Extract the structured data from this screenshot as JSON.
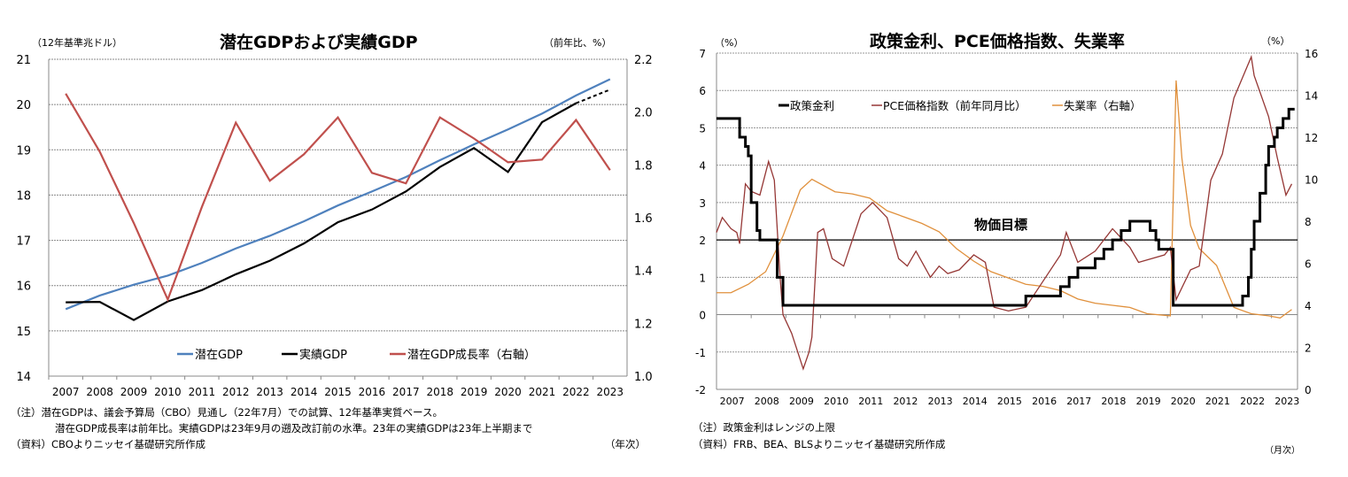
{
  "chart_data": [
    {
      "type": "line",
      "title": "潜在GDPおよび実績GDP",
      "ylabel": "（12年基準兆ドル）",
      "y2label": "（前年比、%）",
      "xlabel": "（年次）",
      "categories": [
        "2007",
        "2008",
        "2009",
        "2010",
        "2011",
        "2012",
        "2013",
        "2014",
        "2015",
        "2016",
        "2017",
        "2018",
        "2019",
        "2020",
        "2021",
        "2022",
        "2023"
      ],
      "ylim": [
        14,
        21
      ],
      "yticks": [
        14,
        15,
        16,
        17,
        18,
        19,
        20,
        21
      ],
      "y2lim": [
        1.0,
        2.2
      ],
      "y2ticks": [
        "1.0",
        "1.2",
        "1.4",
        "1.6",
        "1.8",
        "2.0",
        "2.2"
      ],
      "grid": true,
      "legend_placement": "bottom",
      "series": [
        {
          "name": "潜在GDP",
          "axis": "left",
          "color": "#4F81BD",
          "values": [
            15.48,
            15.78,
            16.02,
            16.22,
            16.5,
            16.82,
            17.1,
            17.42,
            17.77,
            18.08,
            18.4,
            18.77,
            19.12,
            19.45,
            19.8,
            20.2,
            20.56
          ]
        },
        {
          "name": "実績GDP",
          "axis": "left",
          "color": "#000000",
          "dashed_last_segment": true,
          "values": [
            15.63,
            15.64,
            15.24,
            15.65,
            15.9,
            16.25,
            16.55,
            16.93,
            17.4,
            17.68,
            18.08,
            18.62,
            19.04,
            18.51,
            19.61,
            20.03,
            20.33
          ]
        },
        {
          "name": "潜在GDP成長率（右軸）",
          "axis": "right",
          "color": "#C0504D",
          "values": [
            2.07,
            1.85,
            1.58,
            1.29,
            1.64,
            1.96,
            1.74,
            1.84,
            1.98,
            1.77,
            1.73,
            1.98,
            1.9,
            1.81,
            1.82,
            1.97,
            1.78
          ]
        }
      ],
      "notes": [
        "（注）潜在GDPは、議会予算局（CBO）見通し（22年7月）での試算、12年基準実質ベース。",
        "潜在GDP成長率は前年比。実績GDPは23年9月の遡及改訂前の水準。23年の実績GDPは23年上半期まで",
        "（資料）CBOよりニッセイ基礎研究所作成"
      ]
    },
    {
      "type": "line",
      "title": "政策金利、PCE価格指数、失業率",
      "ylabel": "（%）",
      "y2label": "（%）",
      "xlabel": "（月次）",
      "ylim": [
        -2,
        7
      ],
      "yticks": [
        -2,
        -1,
        0,
        1,
        2,
        3,
        4,
        5,
        6,
        7
      ],
      "y2lim": [
        0,
        16
      ],
      "y2ticks": [
        0,
        2,
        4,
        6,
        8,
        10,
        12,
        14,
        16
      ],
      "xticks": [
        "2007",
        "2008",
        "2009",
        "2010",
        "2011",
        "2012",
        "2013",
        "2014",
        "2015",
        "2016",
        "2017",
        "2018",
        "2019",
        "2020",
        "2021",
        "2022",
        "2023"
      ],
      "grid": true,
      "legend_placement": "top",
      "reference_line": {
        "value": 2,
        "label": "物価目標"
      },
      "series": [
        {
          "name": "政策金利",
          "axis": "left",
          "color": "#000000",
          "step": true,
          "points": [
            [
              "2007-01",
              5.25
            ],
            [
              "2007-09",
              4.75
            ],
            [
              "2007-11",
              4.5
            ],
            [
              "2007-12",
              4.25
            ],
            [
              "2008-01",
              3.0
            ],
            [
              "2008-03",
              2.25
            ],
            [
              "2008-04",
              2.0
            ],
            [
              "2008-10",
              1.0
            ],
            [
              "2008-12",
              0.25
            ],
            [
              "2015-12",
              0.5
            ],
            [
              "2016-12",
              0.75
            ],
            [
              "2017-03",
              1.0
            ],
            [
              "2017-06",
              1.25
            ],
            [
              "2017-12",
              1.5
            ],
            [
              "2018-03",
              1.75
            ],
            [
              "2018-06",
              2.0
            ],
            [
              "2018-09",
              2.25
            ],
            [
              "2018-12",
              2.5
            ],
            [
              "2019-07",
              2.25
            ],
            [
              "2019-09",
              2.0
            ],
            [
              "2019-10",
              1.75
            ],
            [
              "2020-03",
              0.25
            ],
            [
              "2022-03",
              0.5
            ],
            [
              "2022-05",
              1.0
            ],
            [
              "2022-06",
              1.75
            ],
            [
              "2022-07",
              2.5
            ],
            [
              "2022-09",
              3.25
            ],
            [
              "2022-11",
              4.0
            ],
            [
              "2022-12",
              4.5
            ],
            [
              "2023-02",
              4.75
            ],
            [
              "2023-03",
              5.0
            ],
            [
              "2023-05",
              5.25
            ],
            [
              "2023-07",
              5.5
            ],
            [
              "2023-09",
              5.5
            ]
          ]
        },
        {
          "name": "PCE価格指数（前年同月比）",
          "axis": "left",
          "color": "#953735",
          "points": [
            [
              "2007-01",
              2.2
            ],
            [
              "2007-03",
              2.6
            ],
            [
              "2007-06",
              2.3
            ],
            [
              "2007-08",
              2.2
            ],
            [
              "2007-09",
              1.9
            ],
            [
              "2007-11",
              3.5
            ],
            [
              "2008-01",
              3.3
            ],
            [
              "2008-04",
              3.2
            ],
            [
              "2008-07",
              4.1
            ],
            [
              "2008-09",
              3.6
            ],
            [
              "2008-11",
              1.0
            ],
            [
              "2008-12",
              0.0
            ],
            [
              "2009-03",
              -0.5
            ],
            [
              "2009-07",
              -1.45
            ],
            [
              "2009-09",
              -1.0
            ],
            [
              "2009-10",
              -0.6
            ],
            [
              "2009-12",
              2.2
            ],
            [
              "2010-02",
              2.3
            ],
            [
              "2010-05",
              1.5
            ],
            [
              "2010-09",
              1.3
            ],
            [
              "2011-03",
              2.7
            ],
            [
              "2011-07",
              3.0
            ],
            [
              "2011-12",
              2.6
            ],
            [
              "2012-04",
              1.5
            ],
            [
              "2012-07",
              1.3
            ],
            [
              "2012-10",
              1.7
            ],
            [
              "2013-03",
              1.0
            ],
            [
              "2013-06",
              1.3
            ],
            [
              "2013-09",
              1.1
            ],
            [
              "2014-01",
              1.2
            ],
            [
              "2014-06",
              1.6
            ],
            [
              "2014-10",
              1.4
            ],
            [
              "2015-01",
              0.2
            ],
            [
              "2015-06",
              0.1
            ],
            [
              "2015-12",
              0.2
            ],
            [
              "2016-06",
              0.9
            ],
            [
              "2016-12",
              1.6
            ],
            [
              "2017-02",
              2.2
            ],
            [
              "2017-06",
              1.4
            ],
            [
              "2017-12",
              1.7
            ],
            [
              "2018-06",
              2.3
            ],
            [
              "2018-12",
              1.8
            ],
            [
              "2019-03",
              1.4
            ],
            [
              "2019-12",
              1.6
            ],
            [
              "2020-02",
              1.8
            ],
            [
              "2020-04",
              0.4
            ],
            [
              "2020-09",
              1.2
            ],
            [
              "2020-12",
              1.3
            ],
            [
              "2021-04",
              3.6
            ],
            [
              "2021-08",
              4.3
            ],
            [
              "2021-12",
              5.8
            ],
            [
              "2022-06",
              6.9
            ],
            [
              "2022-07",
              6.4
            ],
            [
              "2022-12",
              5.3
            ],
            [
              "2023-03",
              4.2
            ],
            [
              "2023-06",
              3.2
            ],
            [
              "2023-08",
              3.5
            ]
          ]
        },
        {
          "name": "失業率（右軸）",
          "axis": "right",
          "color": "#E0903C",
          "points": [
            [
              "2007-01",
              4.6
            ],
            [
              "2007-06",
              4.6
            ],
            [
              "2007-12",
              5.0
            ],
            [
              "2008-06",
              5.6
            ],
            [
              "2008-12",
              7.3
            ],
            [
              "2009-06",
              9.5
            ],
            [
              "2009-10",
              10.0
            ],
            [
              "2010-06",
              9.4
            ],
            [
              "2010-12",
              9.3
            ],
            [
              "2011-06",
              9.1
            ],
            [
              "2011-12",
              8.5
            ],
            [
              "2012-06",
              8.2
            ],
            [
              "2012-12",
              7.9
            ],
            [
              "2013-06",
              7.5
            ],
            [
              "2013-12",
              6.7
            ],
            [
              "2014-06",
              6.1
            ],
            [
              "2014-12",
              5.6
            ],
            [
              "2015-06",
              5.3
            ],
            [
              "2015-12",
              5.0
            ],
            [
              "2016-06",
              4.9
            ],
            [
              "2016-12",
              4.7
            ],
            [
              "2017-06",
              4.3
            ],
            [
              "2017-12",
              4.1
            ],
            [
              "2018-06",
              4.0
            ],
            [
              "2018-12",
              3.9
            ],
            [
              "2019-06",
              3.6
            ],
            [
              "2020-02",
              3.5
            ],
            [
              "2020-04",
              14.7
            ],
            [
              "2020-06",
              11.0
            ],
            [
              "2020-09",
              7.8
            ],
            [
              "2020-12",
              6.7
            ],
            [
              "2021-06",
              5.9
            ],
            [
              "2021-12",
              3.9
            ],
            [
              "2022-06",
              3.6
            ],
            [
              "2022-12",
              3.5
            ],
            [
              "2023-04",
              3.4
            ],
            [
              "2023-06",
              3.6
            ],
            [
              "2023-08",
              3.8
            ]
          ]
        }
      ],
      "notes": [
        "（注）政策金利はレンジの上限",
        "（資料）FRB、BEA、BLSよりニッセイ基礎研究所作成"
      ]
    }
  ]
}
